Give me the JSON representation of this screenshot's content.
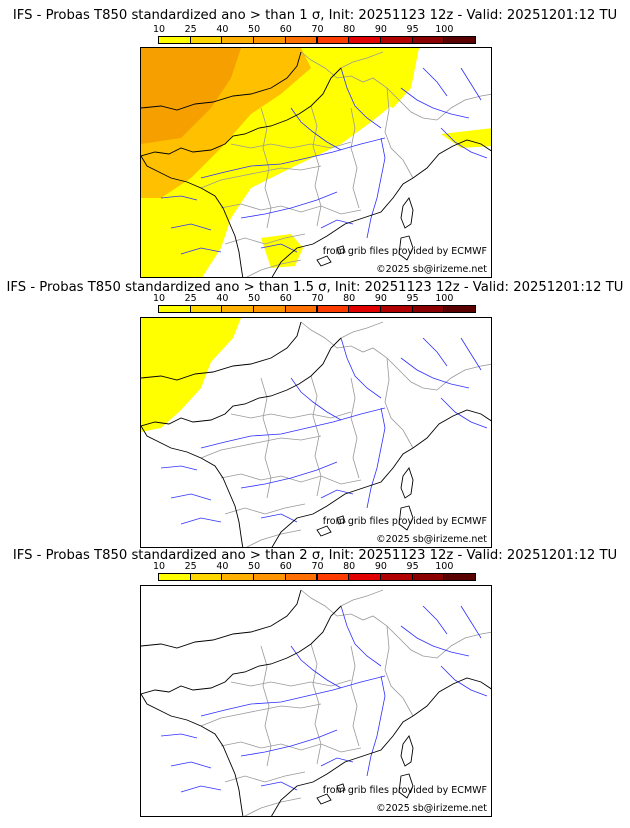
{
  "panels": [
    {
      "title": "IFS - Probas T850  standardized ano > than 1 σ, Init: 20251123 12z - Valid: 20251201:12 TU",
      "credit_source": "from grib files provided by ECMWF",
      "credit_copyright": "©2025 sb@irizeme.net",
      "coverage": "wide"
    },
    {
      "title": "IFS - Probas T850  standardized ano > than 1.5 σ, Init: 20251123 12z - Valid: 20251201:12 TU",
      "credit_source": "from grib files provided by ECMWF",
      "credit_copyright": "©2025 sb@irizeme.net",
      "coverage": "northwest"
    },
    {
      "title": "IFS - Probas T850  standardized ano > than 2 σ, Init: 20251123 12z - Valid: 20251201:12 TU",
      "credit_source": "from grib files provided by ECMWF",
      "credit_copyright": "©2025 sb@irizeme.net",
      "coverage": "none"
    }
  ],
  "legend": {
    "ticks": [
      "10",
      "25",
      "40",
      "50",
      "60",
      "70",
      "80",
      "90",
      "95",
      "100"
    ],
    "colors": [
      "#ffff00",
      "#ffd700",
      "#ffb000",
      "#ff9500",
      "#ff7000",
      "#ff3c00",
      "#e00000",
      "#b00000",
      "#8a0000",
      "#5a0000"
    ]
  },
  "colors": {
    "probability_low": "#ffff00",
    "probability_mid": "#ffc000",
    "probability_high": "#f5a000",
    "rivers": "#3030ff",
    "borders": "#999999",
    "coast": "#000000"
  }
}
